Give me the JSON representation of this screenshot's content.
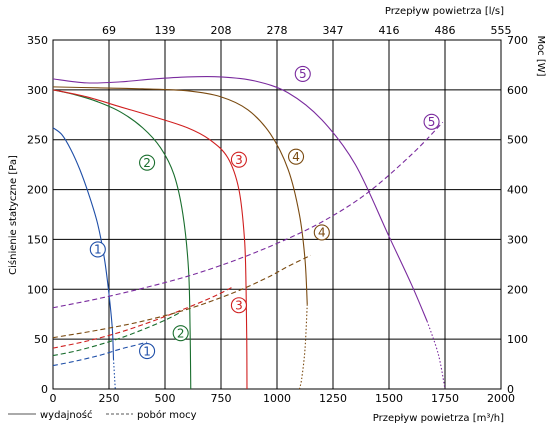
{
  "chart_data": {
    "type": "line",
    "title": "",
    "xlabel_bottom": "Przepływ powietrza [m³/h]",
    "xlabel_top": "Przepływ powietrza [l/s]",
    "ylabel_left": "Ciśnienie statyczne [Pa]",
    "ylabel_right": "Moc [W]",
    "x_ticks": [
      "0",
      "250",
      "500",
      "750",
      "1000",
      "1250",
      "1500",
      "1750",
      "2000"
    ],
    "x_top_ticks": [
      "69",
      "139",
      "208",
      "278",
      "347",
      "416",
      "486",
      "555"
    ],
    "y_left_ticks": [
      "0",
      "50",
      "100",
      "150",
      "200",
      "250",
      "300",
      "350"
    ],
    "y_right_ticks": [
      "0",
      "100",
      "200",
      "300",
      "400",
      "500",
      "600",
      "700"
    ],
    "xlim": [
      0,
      2000
    ],
    "ylim_left": [
      0,
      350
    ],
    "ylim_right": [
      0,
      700
    ],
    "grid": true,
    "legend": {
      "solid": "wydajność",
      "dashed": "pobór mocy",
      "placement": "bottom-left"
    },
    "series": [
      {
        "name": "1",
        "color": "#1f4fa8",
        "axis": "pressure",
        "style": "solid",
        "points": [
          [
            0,
            262
          ],
          [
            40,
            255
          ],
          [
            80,
            240
          ],
          [
            120,
            220
          ],
          [
            160,
            195
          ],
          [
            200,
            165
          ],
          [
            230,
            130
          ],
          [
            250,
            95
          ],
          [
            265,
            60
          ],
          [
            270,
            30
          ]
        ],
        "tail": [
          [
            270,
            30
          ],
          [
            278,
            0
          ]
        ]
      },
      {
        "name": "1",
        "color": "#1f4fa8",
        "axis": "power",
        "style": "dashed",
        "points": [
          [
            0,
            47
          ],
          [
            80,
            54
          ],
          [
            150,
            61
          ],
          [
            220,
            69
          ],
          [
            300,
            80
          ],
          [
            370,
            88
          ],
          [
            420,
            94
          ]
        ]
      },
      {
        "name": "2",
        "color": "#1a6e2e",
        "axis": "pressure",
        "style": "solid",
        "points": [
          [
            0,
            300
          ],
          [
            100,
            295
          ],
          [
            200,
            288
          ],
          [
            300,
            278
          ],
          [
            400,
            262
          ],
          [
            480,
            242
          ],
          [
            540,
            215
          ],
          [
            580,
            175
          ],
          [
            605,
            120
          ],
          [
            612,
            60
          ],
          [
            615,
            0
          ]
        ]
      },
      {
        "name": "2",
        "color": "#1a6e2e",
        "axis": "power",
        "style": "dashed",
        "points": [
          [
            0,
            67
          ],
          [
            100,
            76
          ],
          [
            200,
            88
          ],
          [
            300,
            102
          ],
          [
            400,
            119
          ],
          [
            500,
            138
          ],
          [
            570,
            154
          ]
        ]
      },
      {
        "name": "3",
        "color": "#d01f1f",
        "axis": "pressure",
        "style": "solid",
        "points": [
          [
            0,
            300
          ],
          [
            150,
            293
          ],
          [
            300,
            283
          ],
          [
            450,
            273
          ],
          [
            600,
            262
          ],
          [
            700,
            250
          ],
          [
            780,
            232
          ],
          [
            830,
            200
          ],
          [
            855,
            150
          ],
          [
            862,
            100
          ],
          [
            865,
            50
          ],
          [
            866,
            0
          ]
        ]
      },
      {
        "name": "3",
        "color": "#d01f1f",
        "axis": "power",
        "style": "dashed",
        "points": [
          [
            0,
            82
          ],
          [
            150,
            96
          ],
          [
            300,
            114
          ],
          [
            450,
            137
          ],
          [
            600,
            163
          ],
          [
            720,
            186
          ],
          [
            800,
            204
          ]
        ]
      },
      {
        "name": "4",
        "color": "#7a4a10",
        "axis": "pressure",
        "style": "solid",
        "points": [
          [
            0,
            303
          ],
          [
            200,
            302
          ],
          [
            400,
            301
          ],
          [
            600,
            299
          ],
          [
            750,
            293
          ],
          [
            870,
            280
          ],
          [
            970,
            256
          ],
          [
            1050,
            220
          ],
          [
            1100,
            175
          ],
          [
            1125,
            130
          ],
          [
            1135,
            85
          ]
        ],
        "tail": [
          [
            1135,
            85
          ],
          [
            1125,
            40
          ],
          [
            1110,
            10
          ],
          [
            1100,
            0
          ]
        ]
      },
      {
        "name": "4",
        "color": "#7a4a10",
        "axis": "power",
        "style": "dashed",
        "points": [
          [
            0,
            103
          ],
          [
            200,
            118
          ],
          [
            400,
            136
          ],
          [
            600,
            160
          ],
          [
            800,
            192
          ],
          [
            950,
            222
          ],
          [
            1050,
            246
          ],
          [
            1150,
            268
          ]
        ]
      },
      {
        "name": "5",
        "color": "#7a2b9e",
        "axis": "pressure",
        "style": "solid",
        "points": [
          [
            0,
            311
          ],
          [
            150,
            307
          ],
          [
            300,
            308
          ],
          [
            450,
            311
          ],
          [
            600,
            313
          ],
          [
            750,
            313
          ],
          [
            900,
            309
          ],
          [
            1050,
            297
          ],
          [
            1200,
            270
          ],
          [
            1350,
            225
          ],
          [
            1500,
            153
          ],
          [
            1600,
            105
          ],
          [
            1670,
            68
          ]
        ],
        "tail": [
          [
            1670,
            68
          ],
          [
            1720,
            35
          ],
          [
            1750,
            0
          ]
        ]
      },
      {
        "name": "5",
        "color": "#7a2b9e",
        "axis": "power",
        "style": "dashed",
        "points": [
          [
            0,
            163
          ],
          [
            200,
            181
          ],
          [
            400,
            202
          ],
          [
            600,
            226
          ],
          [
            800,
            256
          ],
          [
            1000,
            292
          ],
          [
            1200,
            335
          ],
          [
            1400,
            392
          ],
          [
            1600,
            470
          ],
          [
            1740,
            535
          ]
        ]
      }
    ],
    "markers": [
      {
        "label": "1",
        "color": "#1f4fa8",
        "x": 200,
        "y": 140
      },
      {
        "label": "1",
        "color": "#1f4fa8",
        "x": 420,
        "y": 38
      },
      {
        "label": "2",
        "color": "#1a6e2e",
        "x": 420,
        "y": 227
      },
      {
        "label": "2",
        "color": "#1a6e2e",
        "x": 570,
        "y": 56
      },
      {
        "label": "3",
        "color": "#d01f1f",
        "x": 830,
        "y": 230
      },
      {
        "label": "3",
        "color": "#d01f1f",
        "x": 830,
        "y": 84
      },
      {
        "label": "4",
        "color": "#7a4a10",
        "x": 1085,
        "y": 233
      },
      {
        "label": "4",
        "color": "#7a4a10",
        "x": 1200,
        "y": 157
      },
      {
        "label": "5",
        "color": "#7a2b9e",
        "x": 1115,
        "y": 316
      },
      {
        "label": "5",
        "color": "#7a2b9e",
        "x": 1690,
        "y": 268
      }
    ]
  }
}
